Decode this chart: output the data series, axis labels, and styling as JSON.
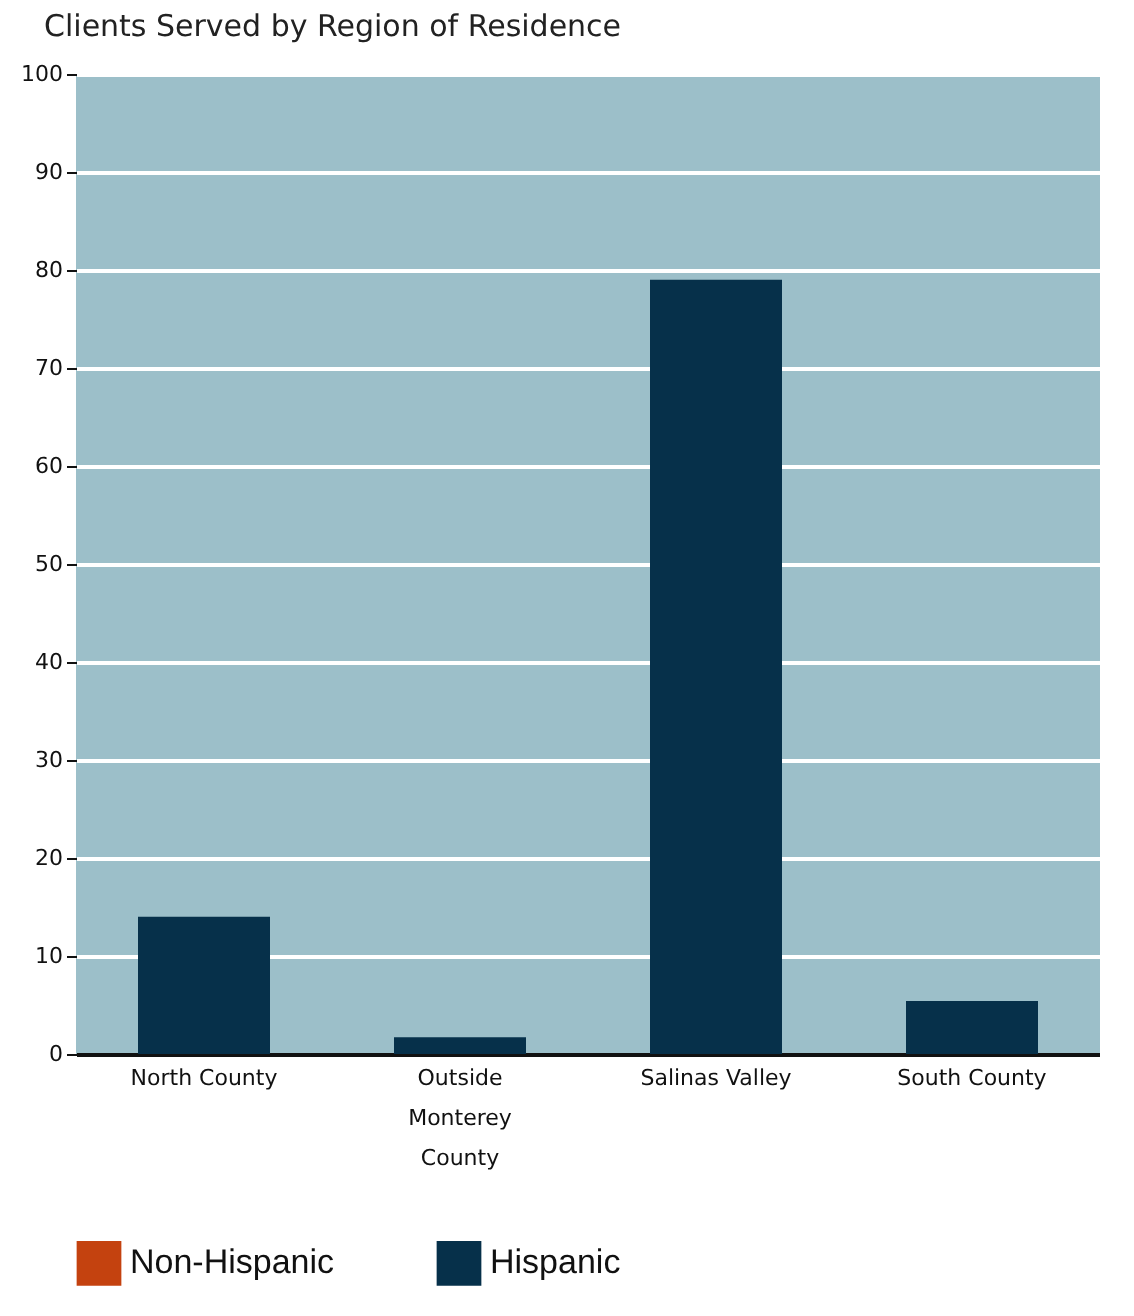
{
  "chart_data": {
    "type": "bar",
    "title": "Clients Served by Region of Residence",
    "categories": [
      "North County",
      "Outside Monterey County",
      "Salinas Valley",
      "South County"
    ],
    "series": [
      {
        "name": "Non-Hispanic",
        "color": "#c4420f",
        "values": [
          null,
          null,
          null,
          null
        ]
      },
      {
        "name": "Hispanic",
        "color": "#06304a",
        "values": [
          14,
          1.7,
          79,
          5.4
        ]
      }
    ],
    "ylim": [
      0,
      100
    ],
    "yticks": [
      0,
      10,
      20,
      30,
      40,
      50,
      60,
      70,
      80,
      90,
      100
    ],
    "grid": "y",
    "legend": "bottom"
  }
}
